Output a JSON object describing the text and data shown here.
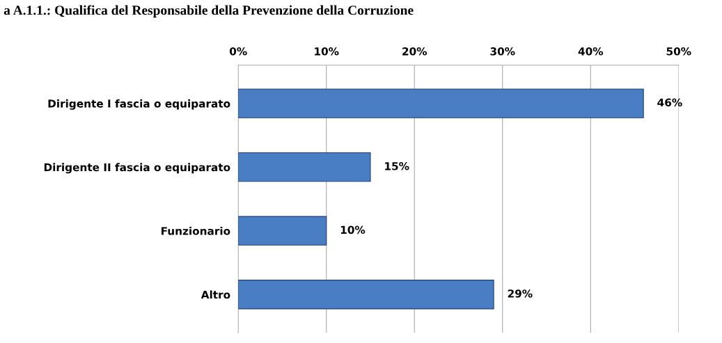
{
  "chart_data": {
    "type": "bar",
    "orientation": "horizontal",
    "title": "a A.1.1.: Qualifica del Responsabile della Prevenzione della Corruzione",
    "categories": [
      "Dirigente I fascia o equiparato",
      "Dirigente II fascia o equiparato",
      "Funzionario",
      "Altro"
    ],
    "values": [
      46,
      15,
      10,
      29
    ],
    "value_labels": [
      "46%",
      "15%",
      "10%",
      "29%"
    ],
    "color": "#4a7ec4",
    "xlim": [
      0,
      50
    ],
    "xticks": [
      {
        "value": 0,
        "label": "0%"
      },
      {
        "value": 10,
        "label": "10%"
      },
      {
        "value": 20,
        "label": "20%"
      },
      {
        "value": 30,
        "label": "30%"
      },
      {
        "value": 40,
        "label": "40%"
      },
      {
        "value": 50,
        "label": "50%"
      }
    ],
    "grid": "x",
    "legend": false
  }
}
